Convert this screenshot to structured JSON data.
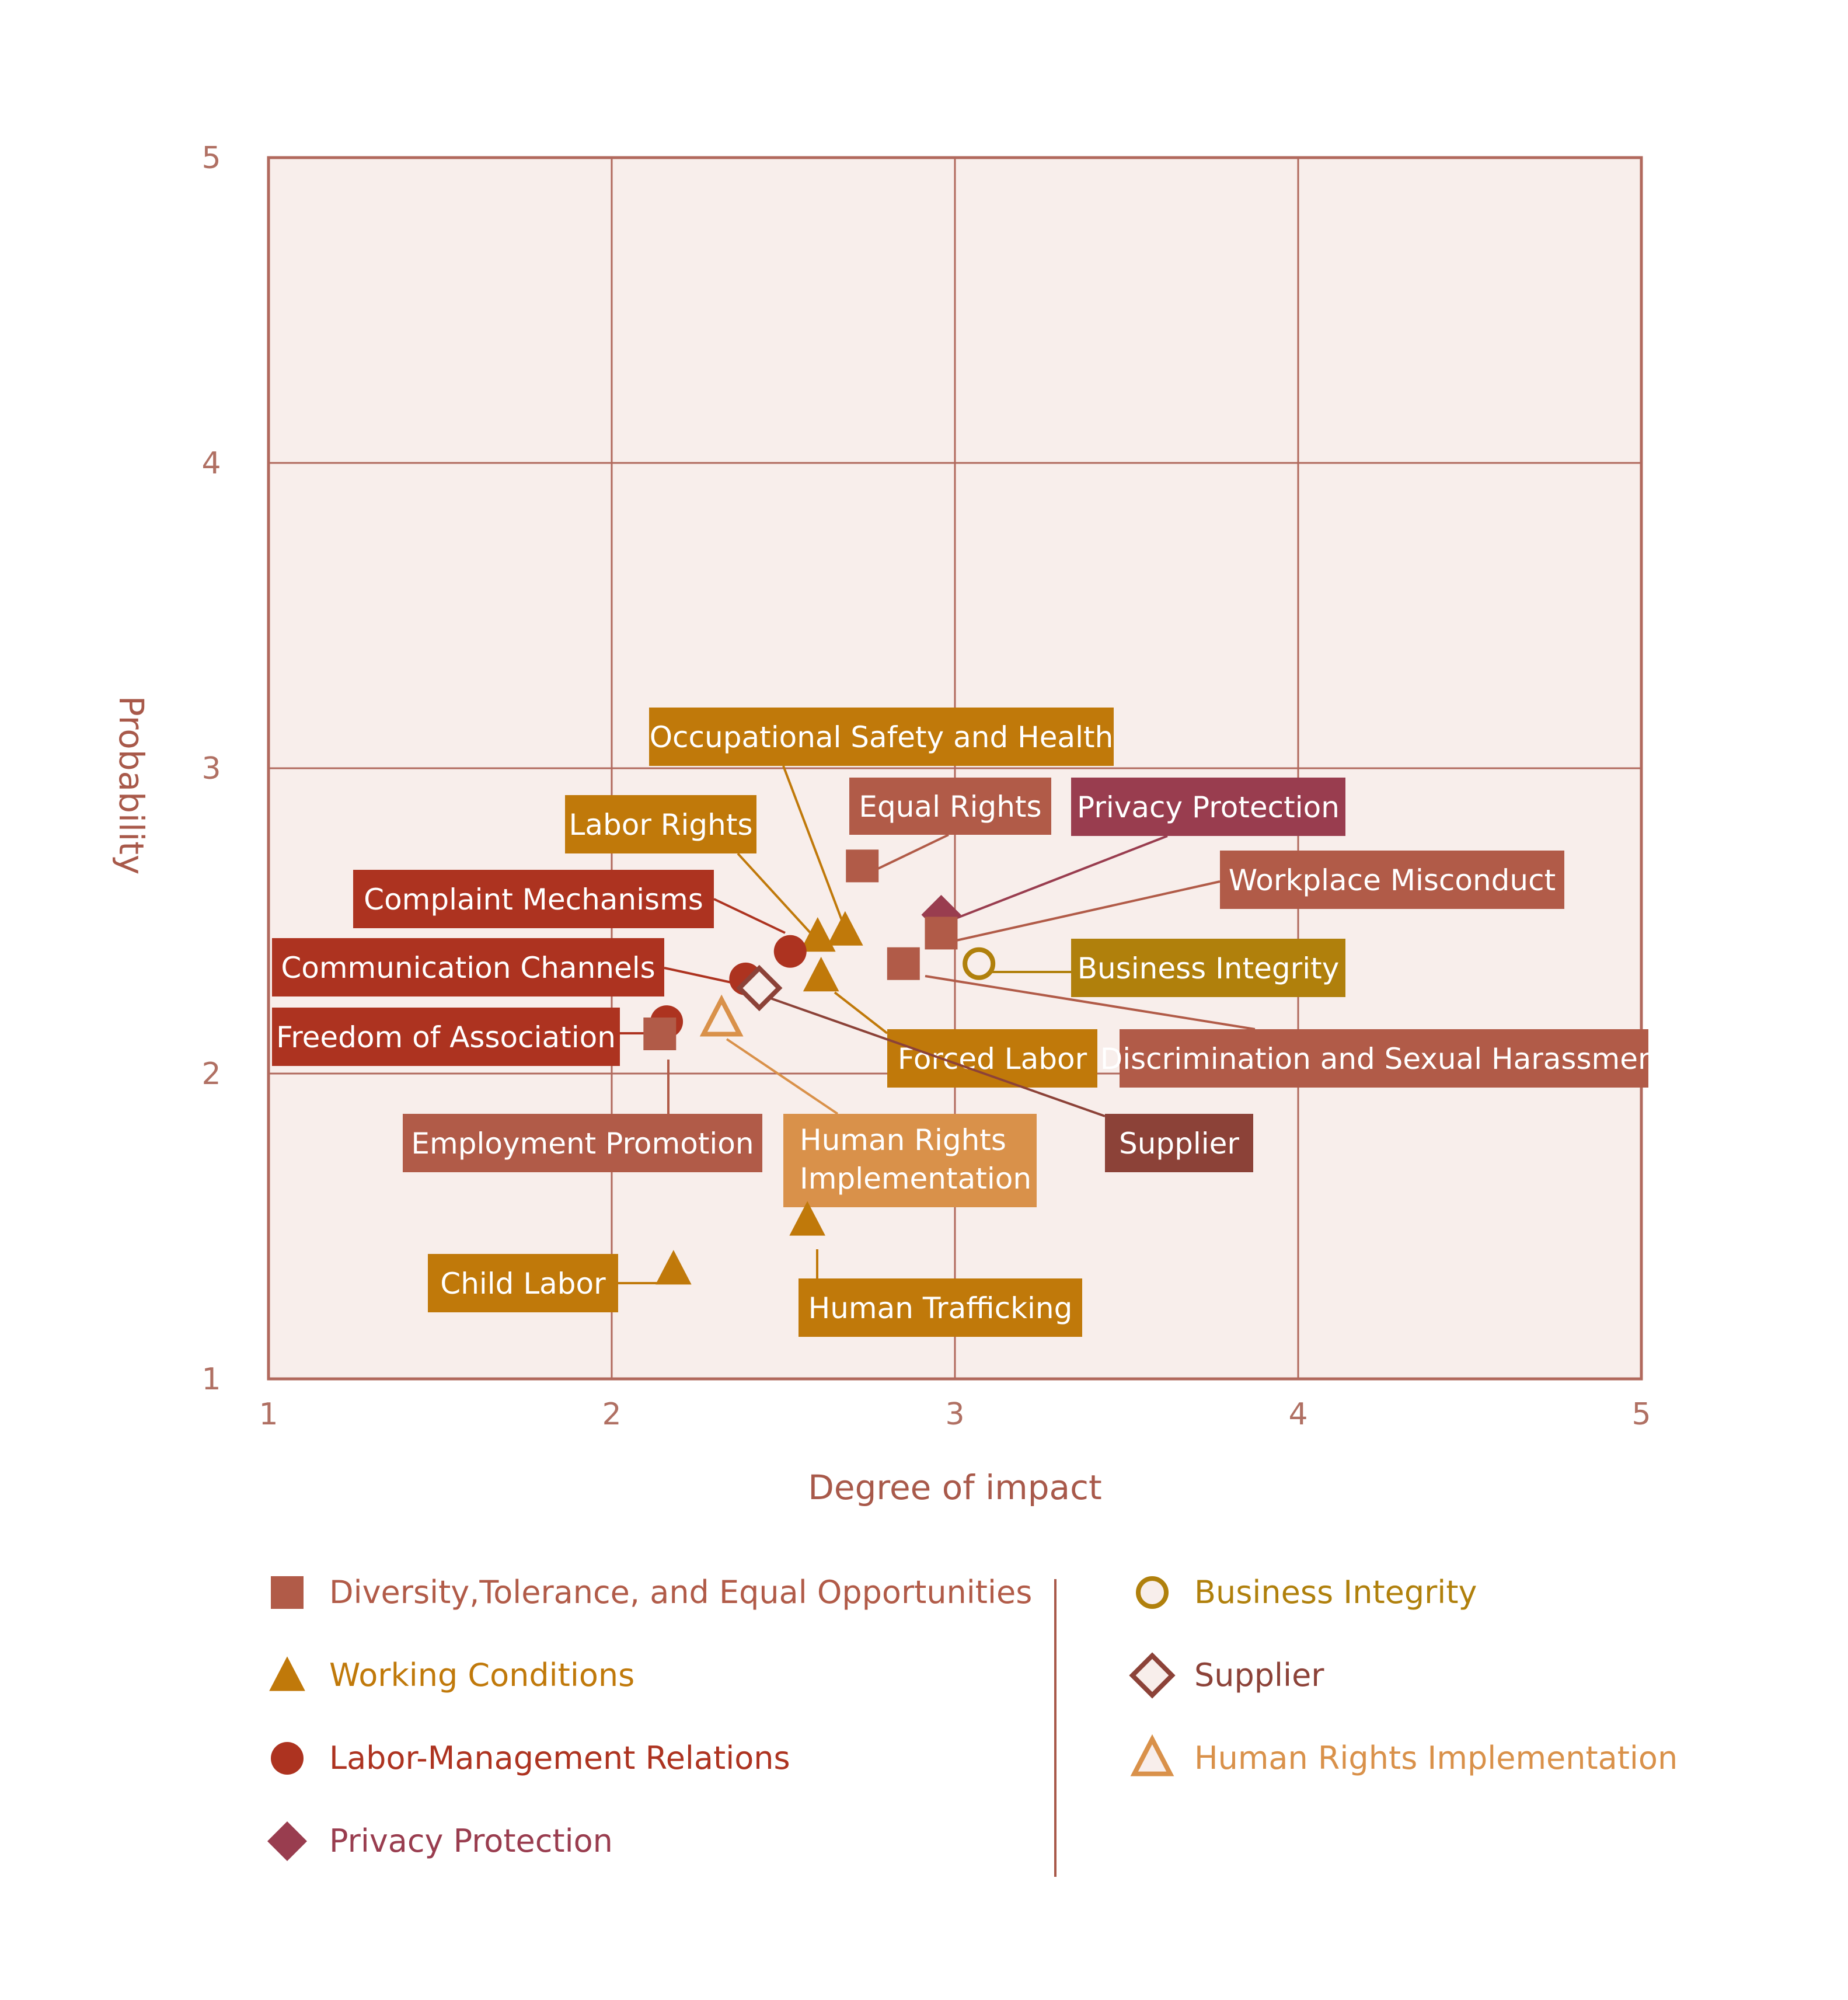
{
  "colors": {
    "diversity": "#b15b48",
    "working": "#c0790a",
    "labor": "#ad3320",
    "privacy": "#993d4f",
    "business": "#b0800c",
    "supplier": "#8c4238",
    "human": "#d9914a",
    "grid": "#b1695d",
    "plot_bg": "#f8eeeb"
  },
  "chart_data": {
    "type": "scatter",
    "xlabel": "Degree of impact",
    "ylabel": "Probability",
    "xlim": [
      1,
      5
    ],
    "ylim": [
      1,
      5
    ],
    "x_ticks": [
      "1",
      "2",
      "3",
      "4",
      "5"
    ],
    "y_ticks": [
      "1",
      "2",
      "3",
      "4",
      "5"
    ],
    "grid": true,
    "points": [
      {
        "label": "Occupational Safety and Health",
        "group": "working",
        "marker": "triangle",
        "x": 2.68,
        "y": 2.47
      },
      {
        "label": "Labor Rights",
        "group": "working",
        "marker": "triangle",
        "x": 2.6,
        "y": 2.45
      },
      {
        "label": "Equal Rights",
        "group": "diversity",
        "marker": "square",
        "x": 2.73,
        "y": 2.68
      },
      {
        "label": "Privacy Protection",
        "group": "privacy",
        "marker": "diamond",
        "x": 2.96,
        "y": 2.52
      },
      {
        "label": "Workplace Misconduct",
        "group": "diversity",
        "marker": "square",
        "x": 2.96,
        "y": 2.46
      },
      {
        "label": "Business Integrity",
        "group": "business",
        "marker": "circle-open",
        "x": 3.07,
        "y": 2.36
      },
      {
        "label": "Complaint Mechanisms",
        "group": "labor",
        "marker": "circle",
        "x": 2.52,
        "y": 2.4
      },
      {
        "label": "Communication Channels",
        "group": "labor",
        "marker": "circle",
        "x": 2.39,
        "y": 2.31
      },
      {
        "label": "Forced Labor",
        "group": "working",
        "marker": "triangle",
        "x": 2.61,
        "y": 2.32
      },
      {
        "label": "Discrimination and Sexual Harassment",
        "group": "diversity",
        "marker": "square",
        "x": 2.85,
        "y": 2.36
      },
      {
        "label": "Freedom of Association",
        "group": "labor",
        "marker": "circle",
        "x": 2.16,
        "y": 2.17
      },
      {
        "label": "Employment Promotion",
        "group": "diversity",
        "marker": "square",
        "x": 2.14,
        "y": 2.13
      },
      {
        "label": "Supplier",
        "group": "supplier",
        "marker": "diamond-open",
        "x": 2.43,
        "y": 2.28
      },
      {
        "label": "Human Rights Implementation",
        "group": "human",
        "marker": "triangle-open",
        "x": 2.32,
        "y": 2.18
      },
      {
        "label": "Human Trafficking",
        "group": "working",
        "marker": "triangle",
        "x": 2.57,
        "y": 1.52
      },
      {
        "label": "Child Labor",
        "group": "working",
        "marker": "triangle",
        "x": 2.18,
        "y": 1.36
      }
    ],
    "legend": [
      {
        "label": "Diversity,Tolerance, and Equal Opportunities",
        "group": "diversity",
        "marker": "square"
      },
      {
        "label": "Working Conditions",
        "group": "working",
        "marker": "triangle"
      },
      {
        "label": "Labor-Management Relations",
        "group": "labor",
        "marker": "circle"
      },
      {
        "label": "Privacy Protection",
        "group": "privacy",
        "marker": "diamond"
      },
      {
        "label": "Business Integrity",
        "group": "business",
        "marker": "circle-open"
      },
      {
        "label": "Supplier",
        "group": "supplier",
        "marker": "diamond-open"
      },
      {
        "label": "Human Rights Implementation",
        "group": "human",
        "marker": "triangle-open"
      }
    ],
    "legend_position": "bottom"
  }
}
